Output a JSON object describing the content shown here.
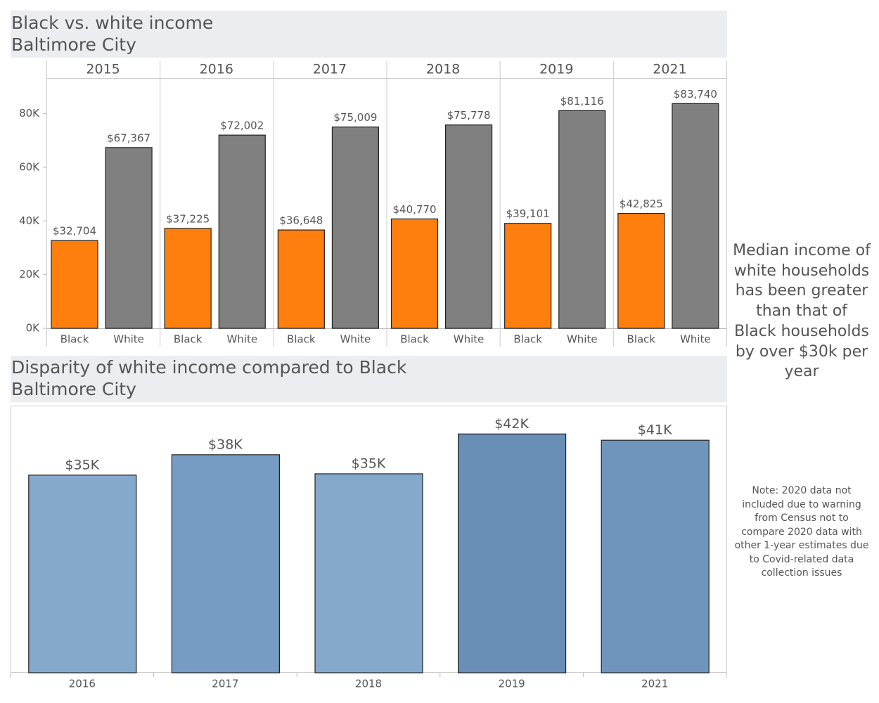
{
  "chart_data": [
    {
      "type": "grouped_bar",
      "title": "Black vs. white income",
      "subtitle": "Baltimore City",
      "categories": [
        "2015",
        "2016",
        "2017",
        "2018",
        "2019",
        "2021"
      ],
      "series": [
        {
          "name": "Black",
          "color": "#ff7f0e",
          "values": [
            32704,
            37225,
            36648,
            40770,
            39101,
            42825
          ],
          "value_labels": [
            "$32,704",
            "$37,225",
            "$36,648",
            "$40,770",
            "$39,101",
            "$42,825"
          ]
        },
        {
          "name": "White",
          "color": "#808080",
          "values": [
            67367,
            72002,
            75009,
            75778,
            81116,
            83740
          ],
          "value_labels": [
            "$67,367",
            "$72,002",
            "$75,009",
            "$75,778",
            "$81,116",
            "$83,740"
          ]
        }
      ],
      "ylim": [
        0,
        93000
      ],
      "yticks": [
        {
          "value": 0,
          "label": "0K"
        },
        {
          "value": 20000,
          "label": "20K"
        },
        {
          "value": 40000,
          "label": "40K"
        },
        {
          "value": 60000,
          "label": "60K"
        },
        {
          "value": 80000,
          "label": "80K"
        }
      ],
      "grid": false
    },
    {
      "type": "bar",
      "title": "Disparity of white income compared to Black",
      "subtitle": "Baltimore City",
      "categories": [
        "2016",
        "2017",
        "2018",
        "2019",
        "2021"
      ],
      "values": [
        34777,
        38361,
        35008,
        42015,
        40915
      ],
      "value_labels": [
        "$35K",
        "$38K",
        "$35K",
        "$42K",
        "$41K"
      ],
      "colors": [
        "#84a9cd",
        "#769cc3",
        "#84a9cd",
        "#6a8fb7",
        "#7095bc"
      ],
      "ylim": [
        0,
        47000
      ],
      "grid": false
    }
  ],
  "side_text": "Median income of white households has been greater than that of Black households by over $30k per year",
  "note": "Note: 2020 data not included due to warning from Census not to compare 2020 data with other 1-year estimates due to Covid-related data collection issues"
}
